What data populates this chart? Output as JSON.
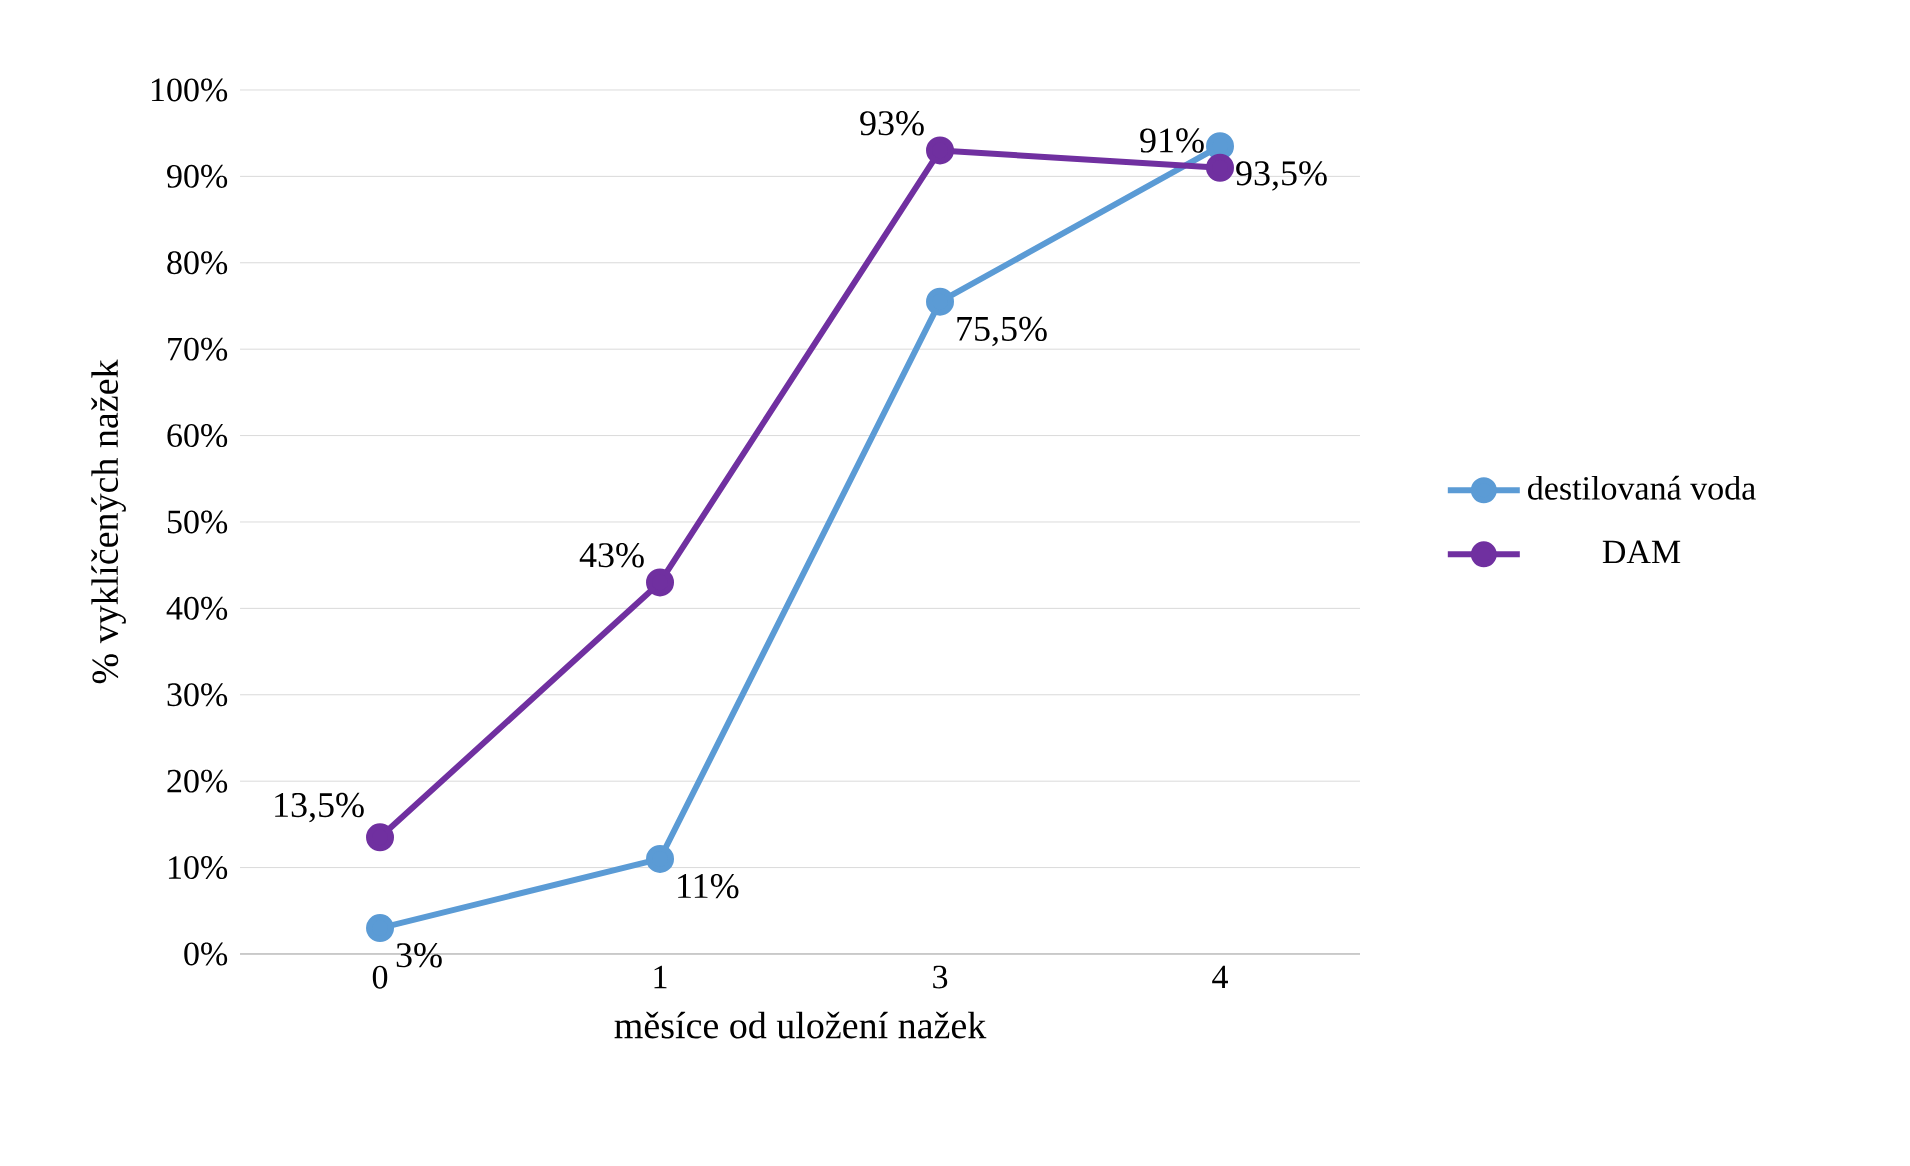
{
  "chart_data": {
    "type": "line",
    "xlabel": "měsíce od uložení nažek",
    "ylabel": "% vyklíčených nažek",
    "categories": [
      "0",
      "1",
      "3",
      "4"
    ],
    "series": [
      {
        "name": "destilovaná voda",
        "color": "#5b9bd5",
        "values": [
          3,
          11,
          75.5,
          93.5
        ],
        "value_labels": [
          "3%",
          "11%",
          "75,5%",
          "93,5%"
        ]
      },
      {
        "name": "DAM",
        "color": "#7030a0",
        "values": [
          13.5,
          43,
          93,
          91
        ],
        "value_labels": [
          "13,5%",
          "43%",
          "93%",
          "91%"
        ]
      }
    ],
    "ylim": [
      0,
      100
    ],
    "yticks": [
      {
        "value": 0,
        "label": "0%"
      },
      {
        "value": 10,
        "label": "10%"
      },
      {
        "value": 20,
        "label": "20%"
      },
      {
        "value": 30,
        "label": "30%"
      },
      {
        "value": 40,
        "label": "40%"
      },
      {
        "value": 50,
        "label": "50%"
      },
      {
        "value": 60,
        "label": "60%"
      },
      {
        "value": 70,
        "label": "70%"
      },
      {
        "value": 80,
        "label": "80%"
      },
      {
        "value": 90,
        "label": "90%"
      },
      {
        "value": 100,
        "label": "100%"
      }
    ],
    "grid": "y",
    "legend": "right",
    "marker": "circle",
    "line_style": "solid"
  }
}
